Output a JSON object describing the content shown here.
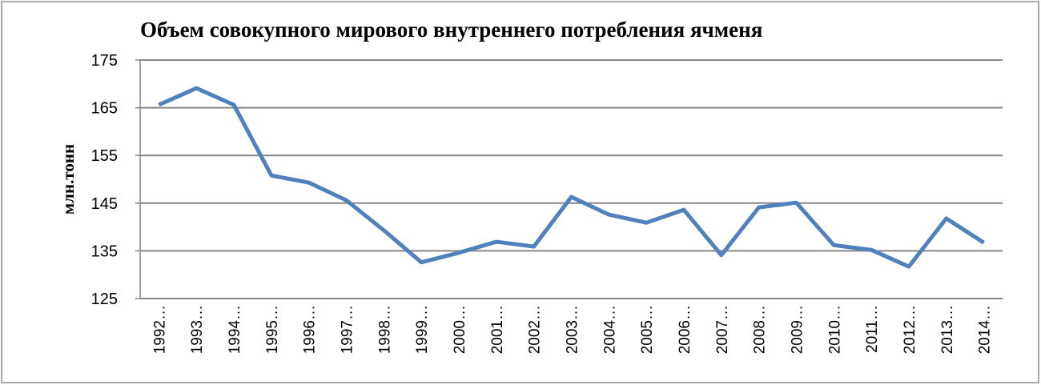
{
  "chart_data": {
    "type": "line",
    "title": "Объем совокупного мирового внутреннего потребления ячменя",
    "y_label": "млн.тонн",
    "categories": [
      "1992…",
      "1993…",
      "1994…",
      "1995…",
      "1996…",
      "1997…",
      "1998…",
      "1999…",
      "2000…",
      "2001…",
      "2002…",
      "2003…",
      "2004…",
      "2005…",
      "2006…",
      "2007…",
      "2008…",
      "2009…",
      "2010…",
      "2011…",
      "2012…",
      "2013…",
      "2014…"
    ],
    "values": [
      165.6,
      169.1,
      165.6,
      150.8,
      149.3,
      145.6,
      139.3,
      132.6,
      134.6,
      136.9,
      135.9,
      146.3,
      142.6,
      140.9,
      143.6,
      134.1,
      144.1,
      145.1,
      136.2,
      135.2,
      131.7,
      141.8,
      136.7
    ],
    "color": "#4f81bd",
    "ylim": [
      125,
      175
    ],
    "yticks": [
      125,
      135,
      145,
      155,
      165,
      175
    ],
    "grid": true
  }
}
